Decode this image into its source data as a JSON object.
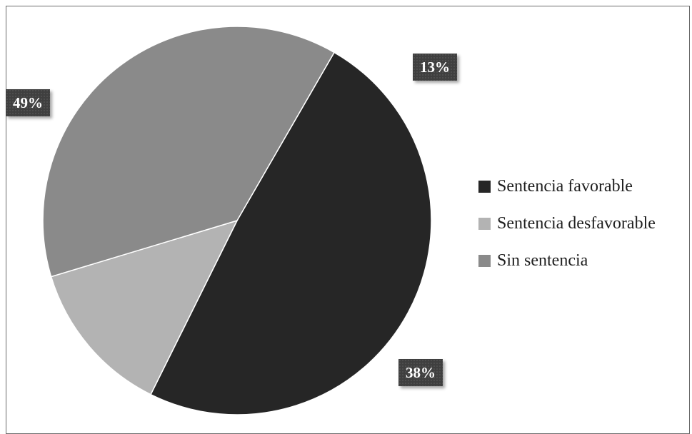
{
  "chart_data": {
    "type": "pie",
    "title": "",
    "categories": [
      "Sentencia favorable",
      "Sentencia desfavorable",
      "Sin sentencia"
    ],
    "values": [
      49,
      13,
      38
    ],
    "data_labels": [
      "49%",
      "13%",
      "38%"
    ],
    "colors": [
      "#262626",
      "#b3b3b3",
      "#8a8a8a"
    ],
    "legend_position": "right"
  }
}
